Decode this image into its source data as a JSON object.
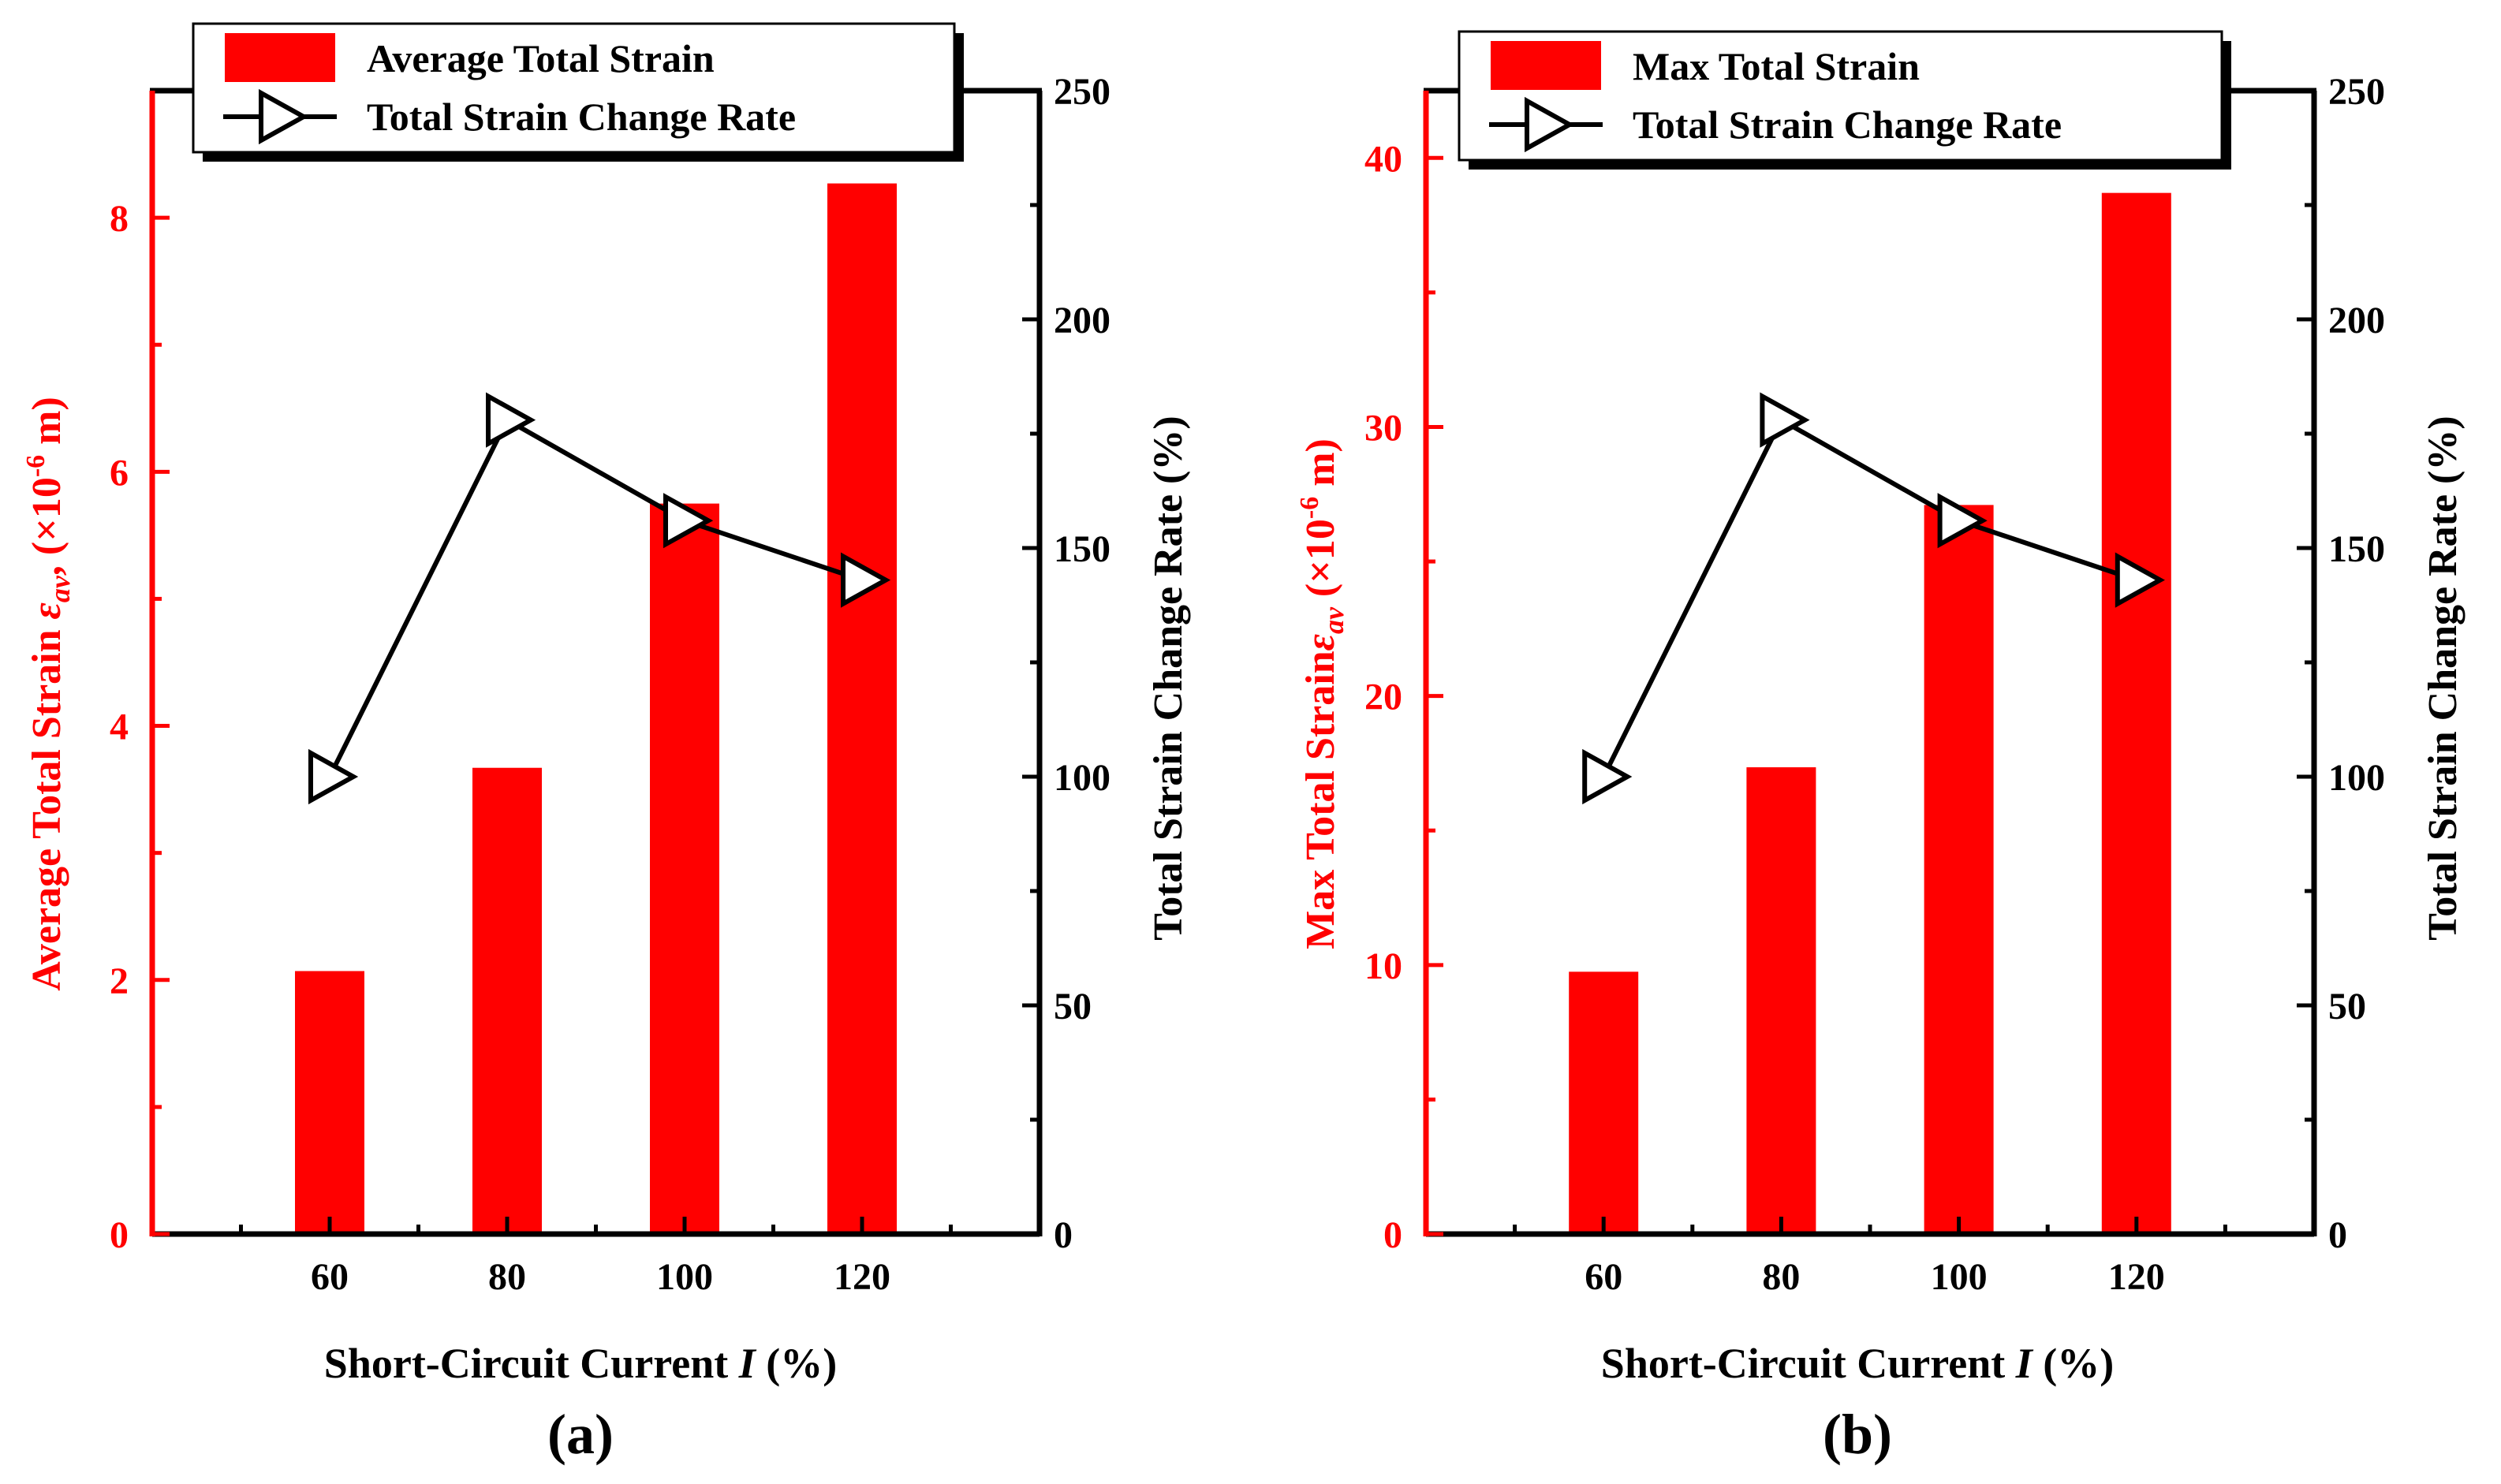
{
  "chart_data": [
    {
      "type": "bar",
      "panel_label": "(a)",
      "categories": [
        "60",
        "80",
        "100",
        "120"
      ],
      "xlabel": "Short-Circuit Current ",
      "xlabel_italic": "I",
      "xlabel_suffix": " (%)",
      "left_axis": {
        "label": "Average Total Strain ",
        "label_symbol": "ε",
        "label_subscript": "av",
        "label_unit_prefix": ", (×10",
        "label_exponent": "-6",
        "label_unit_suffix": " m)",
        "ylim": [
          0,
          9
        ],
        "ticks": [
          "0",
          "2",
          "4",
          "6",
          "8"
        ],
        "tick_values": [
          0,
          2,
          4,
          6,
          8
        ],
        "color": "#ff0000"
      },
      "right_axis": {
        "label": "Total Strain Change Rate (%)",
        "ylim": [
          0,
          250
        ],
        "ticks": [
          "0",
          "50",
          "100",
          "150",
          "200",
          "250"
        ],
        "tick_values": [
          0,
          50,
          100,
          150,
          200,
          250
        ],
        "color": "#000000"
      },
      "series": [
        {
          "name": "Average Total Strain",
          "kind": "bar",
          "axis": "left",
          "color": "#ff0000",
          "values": [
            2.07,
            3.67,
            5.75,
            8.27
          ]
        },
        {
          "name": "Total Strain Change Rate",
          "kind": "line",
          "axis": "right",
          "color": "#000000",
          "marker": "right-triangle",
          "values": [
            100,
            178,
            156,
            143
          ]
        }
      ],
      "legend": [
        "Average Total Strain",
        "Total Strain Change Rate"
      ],
      "legend_position": "top"
    },
    {
      "type": "bar",
      "panel_label": "(b)",
      "categories": [
        "60",
        "80",
        "100",
        "120"
      ],
      "xlabel": "Short-Circuit Current ",
      "xlabel_italic": "I",
      "xlabel_suffix": " (%)",
      "left_axis": {
        "label": "Max Total Strain",
        "label_symbol": "ε",
        "label_subscript": "av",
        "label_unit_prefix": " (×10",
        "label_exponent": "-6",
        "label_unit_suffix": " m)",
        "ylim": [
          0,
          42.5
        ],
        "ticks": [
          "0",
          "10",
          "20",
          "30",
          "40"
        ],
        "tick_values": [
          0,
          10,
          20,
          30,
          40
        ],
        "color": "#ff0000"
      },
      "right_axis": {
        "label": "Total Strain Change Rate (%)",
        "ylim": [
          0,
          250
        ],
        "ticks": [
          "0",
          "50",
          "100",
          "150",
          "200",
          "250"
        ],
        "tick_values": [
          0,
          50,
          100,
          150,
          200,
          250
        ],
        "color": "#000000"
      },
      "series": [
        {
          "name": "Max Total Strain",
          "kind": "bar",
          "axis": "left",
          "color": "#ff0000",
          "values": [
            9.75,
            17.35,
            27.1,
            38.7
          ]
        },
        {
          "name": "Total Strain Change Rate",
          "kind": "line",
          "axis": "right",
          "color": "#000000",
          "marker": "right-triangle",
          "values": [
            100,
            178,
            156,
            143
          ]
        }
      ],
      "legend": [
        "Max Total Strain",
        "Total Strain Change Rate"
      ],
      "legend_position": "top"
    }
  ]
}
